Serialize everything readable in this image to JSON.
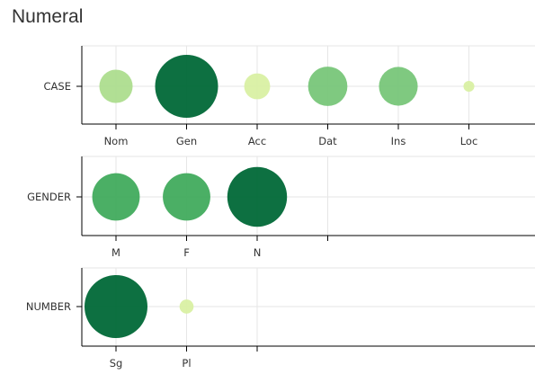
{
  "title": "Numeral",
  "colors": {
    "grid": "#e6e6e6",
    "axis": "#000000",
    "scale": [
      "#ffffcc",
      "#d9f0a3",
      "#addd8e",
      "#78c679",
      "#41ab5d",
      "#238443",
      "#006837"
    ]
  },
  "chart_data": [
    {
      "type": "scatter",
      "label": "CASE",
      "categories": [
        "Nom",
        "Gen",
        "Acc",
        "Dat",
        "Ins",
        "Loc"
      ],
      "values": [
        0.28,
        1.0,
        0.17,
        0.39,
        0.38,
        0.03
      ],
      "grid": true
    },
    {
      "type": "scatter",
      "label": "GENDER",
      "categories": [
        "M",
        "F",
        "N"
      ],
      "values": [
        0.57,
        0.57,
        0.9
      ],
      "grid": true
    },
    {
      "type": "scatter",
      "label": "NUMBER",
      "categories": [
        "Sg",
        "Pl"
      ],
      "values": [
        1.0,
        0.05
      ],
      "grid": true
    }
  ]
}
